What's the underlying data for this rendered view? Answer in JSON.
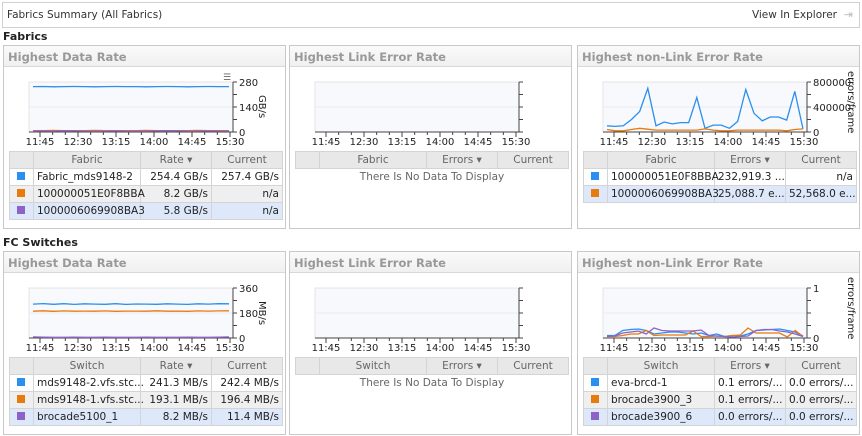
{
  "header": {
    "title": "Fabrics Summary (All Fabrics)",
    "view_label": "View In Explorer"
  },
  "colors": {
    "blue": "#2a8fee",
    "orange": "#e87a0e",
    "purple": "#8e63c8"
  },
  "sections": [
    {
      "title": "Fabrics",
      "panels": [
        {
          "title": "Highest Data Rate",
          "columns": [
            "Fabric",
            "Rate ▾",
            "Current"
          ],
          "no_data": "",
          "chart": {
            "type": "line",
            "unit": "GB/s",
            "ylim": [
              0,
              280
            ],
            "yticks": [
              "0",
              "140",
              "280"
            ],
            "xticks": [
              "11:45",
              "12:30",
              "13:15",
              "14:00",
              "14:45",
              "15:30"
            ],
            "has_menu": true,
            "series": [
              {
                "color": "blue",
                "values": [
                  254,
                  255,
                  253,
                  254,
                  255,
                  254,
                  253,
                  254,
                  255,
                  254,
                  254,
                  253,
                  254,
                  255,
                  254,
                  253,
                  254,
                  255,
                  254,
                  254
                ]
              },
              {
                "color": "orange",
                "values": [
                  8,
                  8,
                  9,
                  8,
                  8,
                  8,
                  9,
                  8,
                  8,
                  8,
                  8,
                  9,
                  8,
                  8,
                  8,
                  8,
                  9,
                  8,
                  8,
                  8
                ]
              },
              {
                "color": "purple",
                "values": [
                  5,
                  6,
                  5,
                  8,
                  6,
                  5,
                  5,
                  5,
                  6,
                  5,
                  5,
                  5,
                  6,
                  8,
                  6,
                  5,
                  5,
                  6,
                  5,
                  5
                ]
              }
            ]
          },
          "rows": [
            {
              "color": "blue",
              "name": "Fabric_mds9148-2",
              "rate": "254.4 GB/s",
              "current": "257.4 GB/s"
            },
            {
              "color": "orange",
              "name": "100000051E0F8BBA",
              "rate": "8.2 GB/s",
              "current": "n/a"
            },
            {
              "color": "purple",
              "name": "1000006069908BA3",
              "rate": "5.8 GB/s",
              "current": "n/a"
            }
          ]
        },
        {
          "title": "Highest Link Error Rate",
          "columns": [
            "Fabric",
            "Errors ▾",
            "Current"
          ],
          "no_data": "There Is No Data To Display",
          "chart": {
            "type": "line",
            "unit": "",
            "ylim": [
              0,
              1
            ],
            "yticks": [],
            "xticks": [
              "11:45",
              "12:30",
              "13:15",
              "14:00",
              "14:45",
              "15:30"
            ],
            "series": []
          },
          "rows": []
        },
        {
          "title": "Highest non-Link Error Rate",
          "columns": [
            "Fabric",
            "Errors ▾",
            "Current"
          ],
          "no_data": "",
          "chart": {
            "type": "line",
            "unit": "errors/frame",
            "ylim": [
              0,
              800000
            ],
            "yticks": [
              "0",
              "400000",
              "800000"
            ],
            "xticks": [
              "11:45",
              "12:30",
              "13:15",
              "14:00",
              "14:45",
              "15:30"
            ],
            "series": [
              {
                "color": "blue",
                "values": [
                  100000,
                  90000,
                  100000,
                  200000,
                  330000,
                  700000,
                  100000,
                  160000,
                  130000,
                  150000,
                  150000,
                  550000,
                  60000,
                  110000,
                  110000,
                  60000,
                  170000,
                  680000,
                  300000,
                  180000,
                  240000,
                  240000,
                  190000,
                  650000,
                  50000
                ]
              },
              {
                "color": "orange",
                "values": [
                  40000,
                  20000,
                  20000,
                  40000,
                  60000,
                  45000,
                  30000,
                  30000,
                  30000,
                  30000,
                  30000,
                  30000,
                  50000,
                  30000,
                  20000,
                  20000,
                  30000,
                  30000,
                  30000,
                  30000,
                  30000,
                  30000,
                  20000,
                  40000,
                  50000
                ]
              }
            ]
          },
          "rows": [
            {
              "color": "blue",
              "name": "100000051E0F8BBA",
              "rate": "232,919.3 ...",
              "current": "n/a"
            },
            {
              "color": "orange",
              "name": "1000006069908BA3",
              "rate": "25,088.7 e...",
              "current": "52,568.0 e..."
            }
          ]
        }
      ]
    },
    {
      "title": "FC Switches",
      "panels": [
        {
          "title": "Highest Data Rate",
          "columns": [
            "Switch",
            "Rate ▾",
            "Current"
          ],
          "no_data": "",
          "chart": {
            "type": "line",
            "unit": "MB/s",
            "ylim": [
              0,
              360
            ],
            "yticks": [
              "0",
              "180",
              "360"
            ],
            "xticks": [
              "11:45",
              "12:30",
              "13:15",
              "14:00",
              "14:45",
              "15:30"
            ],
            "series": [
              {
                "color": "blue",
                "values": [
                  244,
                  248,
                  243,
                  247,
                  242,
                  246,
                  244,
                  243,
                  247,
                  242,
                  245,
                  244,
                  243,
                  246,
                  244,
                  242,
                  246,
                  244,
                  247,
                  246
                ]
              },
              {
                "color": "orange",
                "values": [
                  193,
                  196,
                  192,
                  195,
                  193,
                  194,
                  193,
                  195,
                  192,
                  194,
                  194,
                  193,
                  196,
                  193,
                  194,
                  192,
                  195,
                  194,
                  195,
                  196
                ]
              },
              {
                "color": "purple",
                "values": [
                  8,
                  6,
                  5,
                  5,
                  6,
                  5,
                  5,
                  6,
                  5,
                  5,
                  5,
                  6,
                  5,
                  5,
                  5,
                  6,
                  5,
                  5,
                  6,
                  8
                ]
              }
            ]
          },
          "rows": [
            {
              "color": "blue",
              "name": "mds9148-2.vfs.stc...",
              "rate": "241.3 MB/s",
              "current": "242.4 MB/s"
            },
            {
              "color": "orange",
              "name": "mds9148-1.vfs.stc...",
              "rate": "193.1 MB/s",
              "current": "196.4 MB/s"
            },
            {
              "color": "purple",
              "name": "brocade5100_1",
              "rate": "8.2 MB/s",
              "current": "11.4 MB/s"
            }
          ]
        },
        {
          "title": "Highest Link Error Rate",
          "columns": [
            "Switch",
            "Errors ▾",
            "Current"
          ],
          "no_data": "There Is No Data To Display",
          "chart": {
            "type": "line",
            "unit": "",
            "ylim": [
              0,
              1
            ],
            "yticks": [],
            "xticks": [
              "11:45",
              "12:30",
              "13:15",
              "14:00",
              "14:45",
              "15:30"
            ],
            "series": []
          },
          "rows": []
        },
        {
          "title": "Highest non-Link Error Rate",
          "columns": [
            "Switch",
            "Errors ▾",
            "Current"
          ],
          "no_data": "",
          "chart": {
            "type": "line",
            "unit": "errors/frame",
            "ylim": [
              0,
              1
            ],
            "yticks": [
              "0",
              "",
              "1"
            ],
            "xticks": [
              "11:45",
              "12:30",
              "13:15",
              "14:00",
              "14:45",
              "15:30"
            ],
            "series": [
              {
                "color": "blue",
                "values": [
                  0.05,
                  0.05,
                  0.15,
                  0.17,
                  0.18,
                  0.15,
                  0.08,
                  0.1,
                  0.12,
                  0.12,
                  0.1,
                  0.08,
                  0.1,
                  0.05,
                  0.08,
                  0.03,
                  0.05,
                  0.04,
                  0.08,
                  0.15,
                  0.16,
                  0.17,
                  0.18,
                  0.15,
                  0.12,
                  0.04
                ]
              },
              {
                "color": "orange",
                "values": [
                  0.03,
                  0.03,
                  0.05,
                  0.08,
                  0.08,
                  0.15,
                  0.05,
                  0.06,
                  0.06,
                  0.06,
                  0.06,
                  0.14,
                  0.03,
                  0.03,
                  0.04,
                  0.03,
                  0.05,
                  0.06,
                  0.2,
                  0.1,
                  0.1,
                  0.1,
                  0.1,
                  0.02,
                  0.15,
                  0.03
                ]
              },
              {
                "color": "purple",
                "values": [
                  0.03,
                  0.04,
                  0.1,
                  0.12,
                  0.14,
                  0.08,
                  0.2,
                  0.15,
                  0.14,
                  0.14,
                  0.14,
                  0.14,
                  0.16,
                  0.05,
                  0.04,
                  0.03,
                  0.02,
                  0.03,
                  0.04,
                  0.15,
                  0.17,
                  0.17,
                  0.14,
                  0.12,
                  0.08,
                  0.03
                ]
              }
            ]
          },
          "rows": [
            {
              "color": "blue",
              "name": "eva-brcd-1",
              "rate": "0.1 errors/...",
              "current": "0.0 errors/..."
            },
            {
              "color": "orange",
              "name": "brocade3900_3",
              "rate": "0.1 errors/...",
              "current": "0.0 errors/..."
            },
            {
              "color": "purple",
              "name": "brocade3900_6",
              "rate": "0.0 errors/...",
              "current": "0.0 errors/..."
            }
          ]
        }
      ]
    }
  ]
}
